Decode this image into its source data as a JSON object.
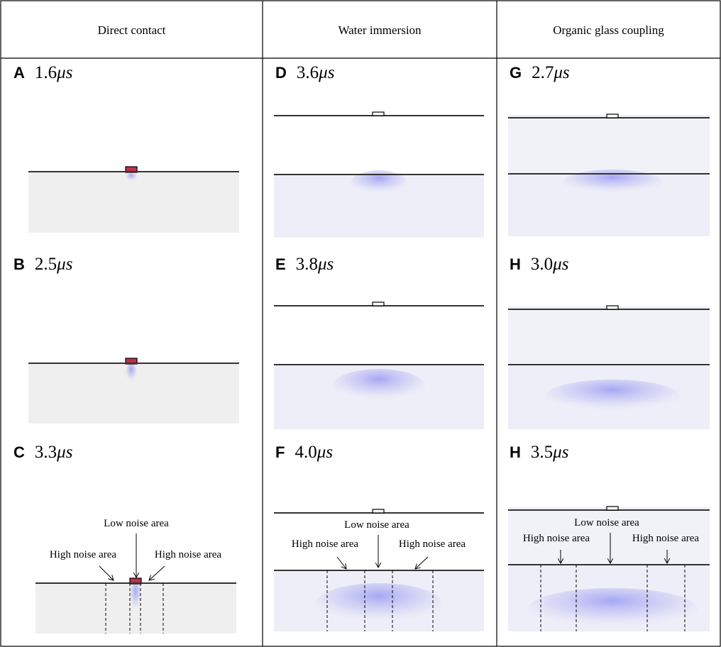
{
  "table": {
    "headers": [
      "Direct contact",
      "Water immersion",
      "Organic glass coupling"
    ],
    "rows": [
      [
        {
          "letter": "A",
          "value": "1.6",
          "unit": "μs"
        },
        {
          "letter": "D",
          "value": "3.6",
          "unit": "μs"
        },
        {
          "letter": "G",
          "value": "2.7",
          "unit": "μs"
        }
      ],
      [
        {
          "letter": "B",
          "value": "2.5",
          "unit": "μs"
        },
        {
          "letter": "E",
          "value": "3.8",
          "unit": "μs"
        },
        {
          "letter": "H",
          "value": "3.0",
          "unit": "μs"
        }
      ],
      [
        {
          "letter": "C",
          "value": "3.3",
          "unit": "μs",
          "labels": [
            "Low noise area",
            "High noise area",
            "High noise area"
          ]
        },
        {
          "letter": "F",
          "value": "4.0",
          "unit": "μs",
          "labels": [
            "Low noise area",
            "High noise area",
            "High noise area"
          ]
        },
        {
          "letter": "H",
          "value": "3.5",
          "unit": "μs",
          "labels": [
            "Low noise area",
            "High noise area",
            "High noise area"
          ]
        }
      ]
    ]
  }
}
